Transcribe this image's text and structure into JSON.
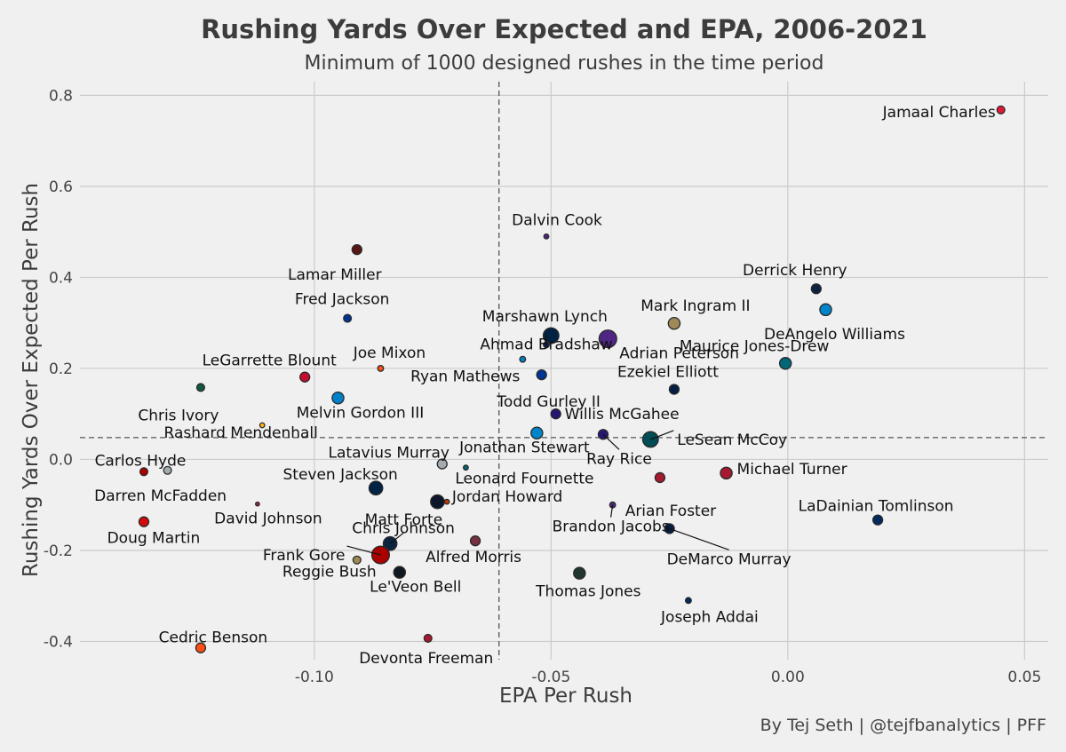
{
  "chart_data": {
    "type": "scatter",
    "title": "Rushing Yards Over Expected and EPA, 2006-2021",
    "subtitle": "Minimum of 1000 designed rushes in the time period",
    "xlabel": "EPA Per Rush",
    "ylabel": "Rushing Yards Over Expected Per Rush",
    "caption": "By Tej Seth | @tejfbanalytics | PFF",
    "xlim": [
      -0.1495,
      0.055
    ],
    "ylim": [
      -0.44,
      0.83
    ],
    "xticks": [
      -0.1,
      -0.05,
      0.0,
      0.05
    ],
    "xtick_labels": [
      "-0.10",
      "-0.05",
      "0.00",
      "0.05"
    ],
    "yticks": [
      -0.4,
      -0.2,
      0.0,
      0.2,
      0.4,
      0.6,
      0.8
    ],
    "ytick_labels": [
      "-0.4",
      "-0.2",
      "0.0",
      "0.2",
      "0.4",
      "0.6",
      "0.8"
    ],
    "grid": true,
    "reference_lines": {
      "x": -0.061,
      "y": 0.048
    },
    "points": [
      {
        "name": "Jamaal Charles",
        "x": 0.045,
        "y": 0.768,
        "size": 4,
        "color": "#e31837"
      },
      {
        "name": "Dalvin Cook",
        "x": -0.051,
        "y": 0.49,
        "size": 2.5,
        "color": "#4f2683"
      },
      {
        "name": "Lamar Miller",
        "x": -0.091,
        "y": 0.461,
        "size": 5,
        "color": "#5a1414"
      },
      {
        "name": "Derrick Henry",
        "x": 0.006,
        "y": 0.375,
        "size": 5,
        "color": "#0c2340"
      },
      {
        "name": "DeAngelo Williams",
        "x": 0.008,
        "y": 0.329,
        "size": 6,
        "color": "#0085ca"
      },
      {
        "name": "Fred Jackson",
        "x": -0.093,
        "y": 0.31,
        "size": 4,
        "color": "#00338d"
      },
      {
        "name": "Mark Ingram II",
        "x": -0.024,
        "y": 0.299,
        "size": 6,
        "color": "#9f8958"
      },
      {
        "name": "Marshawn Lynch",
        "x": -0.05,
        "y": 0.272,
        "size": 8,
        "color": "#002244"
      },
      {
        "name": "Adrian Peterson",
        "x": -0.038,
        "y": 0.265,
        "size": 9,
        "color": "#4f2683"
      },
      {
        "name": "Ahmad Bradshaw",
        "x": -0.051,
        "y": 0.252,
        "size": 3,
        "color": "#0b2265"
      },
      {
        "name": "Maurice Jones-Drew",
        "x": -0.0005,
        "y": 0.211,
        "size": 6,
        "color": "#006778"
      },
      {
        "name": "Ryan Mathews",
        "x": -0.056,
        "y": 0.22,
        "size": 3,
        "color": "#0080c6"
      },
      {
        "name": "Joe Mixon",
        "x": -0.086,
        "y": 0.2,
        "size": 3,
        "color": "#fb4f14"
      },
      {
        "name": "LeGarrette Blount",
        "x": -0.102,
        "y": 0.181,
        "size": 5,
        "color": "#c60c30"
      },
      {
        "name": "Todd Gurley II",
        "x": -0.052,
        "y": 0.186,
        "size": 5,
        "color": "#003594"
      },
      {
        "name": "Chris Ivory",
        "x": -0.124,
        "y": 0.158,
        "size": 4,
        "color": "#125740"
      },
      {
        "name": "Ezekiel Elliott",
        "x": -0.024,
        "y": 0.154,
        "size": 5,
        "color": "#041e42"
      },
      {
        "name": "Melvin Gordon III",
        "x": -0.095,
        "y": 0.135,
        "size": 6,
        "color": "#0080c6"
      },
      {
        "name": "Willis McGahee",
        "x": -0.049,
        "y": 0.1,
        "size": 5,
        "color": "#241773"
      },
      {
        "name": "Rashard Mendenhall",
        "x": -0.111,
        "y": 0.075,
        "size": 2.5,
        "color": "#ffb612"
      },
      {
        "name": "Ray Rice",
        "x": -0.039,
        "y": 0.055,
        "size": 5,
        "color": "#241773"
      },
      {
        "name": "Jonathan Stewart",
        "x": -0.053,
        "y": 0.058,
        "size": 6,
        "color": "#0085ca"
      },
      {
        "name": "LeSean McCoy",
        "x": -0.029,
        "y": 0.044,
        "size": 8,
        "color": "#004c54"
      },
      {
        "name": "Latavius Murray",
        "x": -0.073,
        "y": -0.01,
        "size": 5,
        "color": "#a5acaf"
      },
      {
        "name": "Leonard Fournette",
        "x": -0.068,
        "y": -0.018,
        "size": 2.5,
        "color": "#006778"
      },
      {
        "name": "Carlos Hyde",
        "x": -0.136,
        "y": -0.027,
        "size": 4,
        "color": "#aa0000"
      },
      {
        "name": "Darren McFadden",
        "x": -0.131,
        "y": -0.024,
        "size": 4,
        "color": "#a5acaf"
      },
      {
        "name": "Michael Turner",
        "x": -0.013,
        "y": -0.03,
        "size": 6,
        "color": "#a71930"
      },
      {
        "name": "Arian Foster",
        "x": -0.027,
        "y": -0.04,
        "size": 5,
        "color": "#a71930"
      },
      {
        "name": "Steven Jackson",
        "x": -0.087,
        "y": -0.063,
        "size": 7,
        "color": "#002244"
      },
      {
        "name": "Matt Forte",
        "x": -0.074,
        "y": -0.093,
        "size": 7,
        "color": "#0b162a"
      },
      {
        "name": "Jordan Howard",
        "x": -0.072,
        "y": -0.093,
        "size": 2.5,
        "color": "#c83803"
      },
      {
        "name": "Brandon Jacobs",
        "x": -0.037,
        "y": -0.1,
        "size": 3,
        "color": "#4f2683"
      },
      {
        "name": "David Johnson",
        "x": -0.112,
        "y": -0.098,
        "size": 2,
        "color": "#97233f"
      },
      {
        "name": "LaDainian Tomlinson",
        "x": 0.019,
        "y": -0.133,
        "size": 5,
        "color": "#002a5e"
      },
      {
        "name": "Doug Martin",
        "x": -0.136,
        "y": -0.137,
        "size": 5,
        "color": "#d50a0a"
      },
      {
        "name": "DeMarco Murray",
        "x": -0.025,
        "y": -0.152,
        "size": 5,
        "color": "#041e42"
      },
      {
        "name": "Alfred Morris",
        "x": -0.066,
        "y": -0.179,
        "size": 5,
        "color": "#773141"
      },
      {
        "name": "Chris Johnson",
        "x": -0.084,
        "y": -0.185,
        "size": 7,
        "color": "#0c2340"
      },
      {
        "name": "Frank Gore",
        "x": -0.086,
        "y": -0.21,
        "size": 9,
        "color": "#aa0000"
      },
      {
        "name": "Reggie Bush",
        "x": -0.091,
        "y": -0.221,
        "size": 4,
        "color": "#9f8958"
      },
      {
        "name": "Le'Veon Bell",
        "x": -0.082,
        "y": -0.248,
        "size": 6,
        "color": "#101820"
      },
      {
        "name": "Thomas Jones",
        "x": -0.044,
        "y": -0.25,
        "size": 6,
        "color": "#203731"
      },
      {
        "name": "Joseph Addai",
        "x": -0.021,
        "y": -0.31,
        "size": 3,
        "color": "#002c5f"
      },
      {
        "name": "Devonta Freeman",
        "x": -0.076,
        "y": -0.393,
        "size": 4,
        "color": "#a71930"
      },
      {
        "name": "Cedric Benson",
        "x": -0.124,
        "y": -0.414,
        "size": 5,
        "color": "#fb4f14"
      }
    ]
  }
}
